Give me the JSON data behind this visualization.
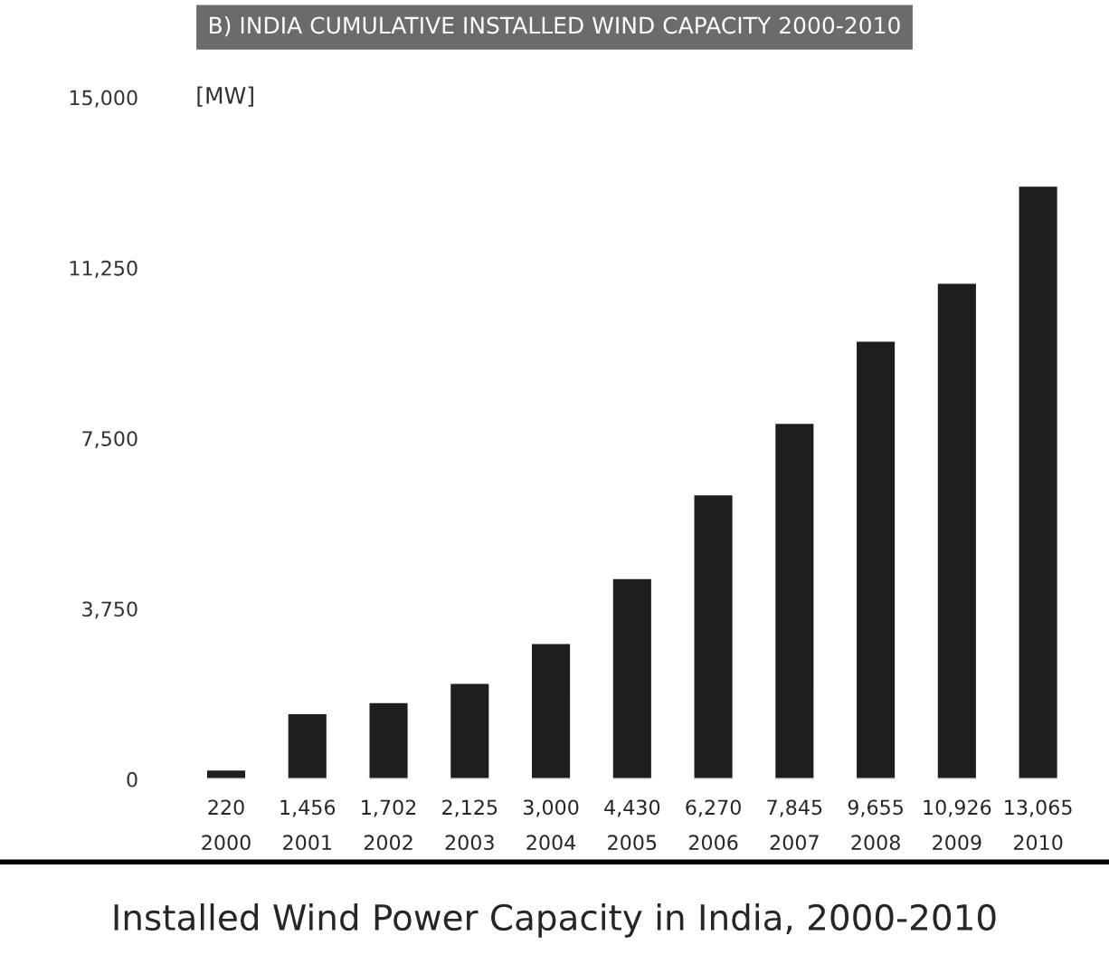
{
  "chart_data": {
    "type": "bar",
    "title": "B) INDIA CUMULATIVE INSTALLED WIND CAPACITY 2000-2010",
    "ylabel": "[MW]",
    "categories": [
      "2000",
      "2001",
      "2002",
      "2003",
      "2004",
      "2005",
      "2006",
      "2007",
      "2008",
      "2009",
      "2010"
    ],
    "values": [
      220,
      1456,
      1702,
      2125,
      3000,
      4430,
      6270,
      7845,
      9655,
      10926,
      13065
    ],
    "color": "#1e1e1e",
    "value_labels": [
      "220",
      "1,456",
      "1,702",
      "2,125",
      "3,000",
      "4,430",
      "6,270",
      "7,845",
      "9,655",
      "10,926",
      "13,065"
    ],
    "ylim": [
      0,
      15000
    ],
    "yticks": [
      {
        "value": 0,
        "label": "0"
      },
      {
        "value": 3750,
        "label": "3,750"
      },
      {
        "value": 7500,
        "label": "7,500"
      },
      {
        "value": 11250,
        "label": "11,250"
      },
      {
        "value": 15000,
        "label": "15,000"
      }
    ],
    "grid": false,
    "annotations": [
      "Installed Wind Power Capacity in India, 2000-2010"
    ]
  }
}
